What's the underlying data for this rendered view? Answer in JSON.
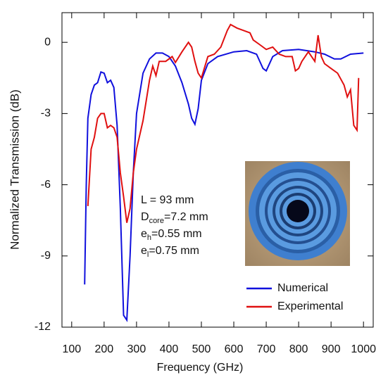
{
  "chart_data": {
    "type": "line",
    "xlabel": "Frequency (GHz)",
    "ylabel": "Normalized Transmission (dB)",
    "xlim": [
      70,
      1030
    ],
    "ylim": [
      -12,
      1.25
    ],
    "xticks": [
      100,
      200,
      300,
      400,
      500,
      600,
      700,
      800,
      900,
      1000
    ],
    "yticks": [
      0,
      -3,
      -6,
      -9,
      -12
    ],
    "legend": "lower right",
    "annotations": [
      {
        "main": "L = 93 mm"
      },
      {
        "main": "D",
        "sub": "core",
        "rest": "=7.2 mm"
      },
      {
        "main": "e",
        "sub": "h",
        "rest": "=0.55 mm"
      },
      {
        "main": "e",
        "sub": "l",
        "rest": "=0.75 mm"
      }
    ],
    "series": [
      {
        "name": "Numerical",
        "color": "#1010dd",
        "x": [
          140,
          145,
          150,
          160,
          170,
          180,
          190,
          200,
          210,
          220,
          230,
          240,
          250,
          260,
          270,
          280,
          290,
          300,
          320,
          340,
          360,
          380,
          400,
          420,
          440,
          460,
          470,
          480,
          490,
          500,
          520,
          550,
          600,
          640,
          670,
          690,
          700,
          720,
          750,
          800,
          850,
          880,
          910,
          930,
          960,
          1000
        ],
        "values": [
          -10.2,
          -6,
          -3.2,
          -2.2,
          -1.8,
          -1.7,
          -1.25,
          -1.3,
          -1.7,
          -1.6,
          -1.9,
          -3.5,
          -7,
          -11.5,
          -11.7,
          -9,
          -5.5,
          -3,
          -1.3,
          -0.7,
          -0.45,
          -0.45,
          -0.6,
          -1,
          -1.7,
          -2.6,
          -3.2,
          -3.45,
          -2.8,
          -1.6,
          -0.9,
          -0.6,
          -0.4,
          -0.35,
          -0.5,
          -1.1,
          -1.2,
          -0.6,
          -0.35,
          -0.3,
          -0.4,
          -0.5,
          -0.7,
          -0.7,
          -0.5,
          -0.45
        ]
      },
      {
        "name": "Experimental",
        "color": "#e01010",
        "x": [
          150,
          160,
          170,
          180,
          190,
          200,
          210,
          220,
          230,
          240,
          250,
          260,
          270,
          280,
          290,
          300,
          320,
          340,
          350,
          360,
          370,
          390,
          410,
          420,
          440,
          460,
          470,
          480,
          490,
          500,
          520,
          540,
          560,
          580,
          590,
          610,
          630,
          650,
          660,
          680,
          700,
          720,
          740,
          760,
          780,
          790,
          800,
          810,
          830,
          850,
          860,
          870,
          880,
          900,
          920,
          940,
          950,
          960,
          970,
          980,
          985
        ],
        "values": [
          -6.9,
          -4.5,
          -4,
          -3.2,
          -3.0,
          -3.0,
          -3.6,
          -3.5,
          -3.6,
          -4,
          -5.5,
          -6.5,
          -7.6,
          -7,
          -5.5,
          -4.5,
          -3.3,
          -1.6,
          -1.0,
          -1.4,
          -0.8,
          -0.8,
          -0.6,
          -0.85,
          -0.4,
          0.0,
          -0.2,
          -0.8,
          -1.3,
          -1.5,
          -0.6,
          -0.5,
          -0.2,
          0.5,
          0.75,
          0.6,
          0.5,
          0.4,
          0.1,
          -0.1,
          -0.3,
          -0.2,
          -0.5,
          -0.6,
          -0.6,
          -1.2,
          -1.1,
          -0.8,
          -0.4,
          -0.8,
          0.3,
          -0.6,
          -0.9,
          -1.1,
          -1.3,
          -1.8,
          -2.3,
          -2.0,
          -3.5,
          -3.7,
          -1.5
        ]
      }
    ]
  }
}
